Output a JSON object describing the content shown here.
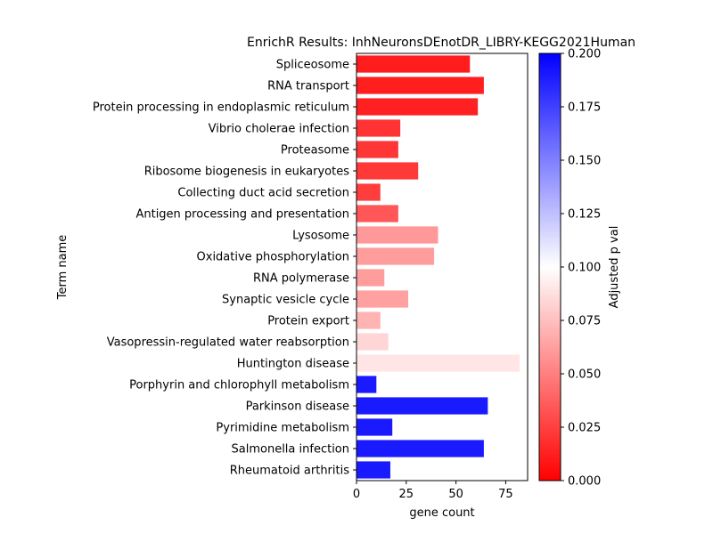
{
  "chart_data": {
    "type": "bar",
    "orientation": "horizontal",
    "title": "EnrichR Results: InhNeuronsDEnotDR_LIBRY-KEGG2021Human",
    "xlabel": "gene count",
    "ylabel": "Term name",
    "xlim": [
      0,
      86
    ],
    "xticks": [
      0,
      25,
      50,
      75
    ],
    "grid": false,
    "categories": [
      "Spliceosome",
      "RNA transport",
      "Protein processing in endoplasmic reticulum",
      "Vibrio cholerae infection",
      "Proteasome",
      "Ribosome biogenesis in eukaryotes",
      "Collecting duct acid secretion",
      "Antigen processing and presentation",
      "Lysosome",
      "Oxidative phosphorylation",
      "RNA polymerase",
      "Synaptic vesicle cycle",
      "Protein export",
      "Vasopressin-regulated water reabsorption",
      "Huntington disease",
      "Porphyrin and chlorophyll metabolism",
      "Parkinson disease",
      "Pyrimidine metabolism",
      "Salmonella infection",
      "Rheumatoid arthritis"
    ],
    "values": [
      57,
      64,
      61,
      22,
      21,
      31,
      12,
      21,
      41,
      39,
      14,
      26,
      12,
      16,
      82,
      10,
      66,
      18,
      64,
      17
    ],
    "adjusted_p_val": [
      0.011,
      0.012,
      0.013,
      0.02,
      0.021,
      0.022,
      0.024,
      0.034,
      0.06,
      0.061,
      0.061,
      0.063,
      0.07,
      0.084,
      0.09,
      0.19,
      0.19,
      0.19,
      0.19,
      0.19
    ],
    "colorbar": {
      "label": "Adjusted p val",
      "range": [
        0,
        0.2
      ],
      "ticks": [
        "0.000",
        "0.025",
        "0.050",
        "0.075",
        "0.100",
        "0.125",
        "0.150",
        "0.175",
        "0.200"
      ],
      "colormap": [
        "#ff0000",
        "#ffffff",
        "#0000ff"
      ]
    }
  }
}
